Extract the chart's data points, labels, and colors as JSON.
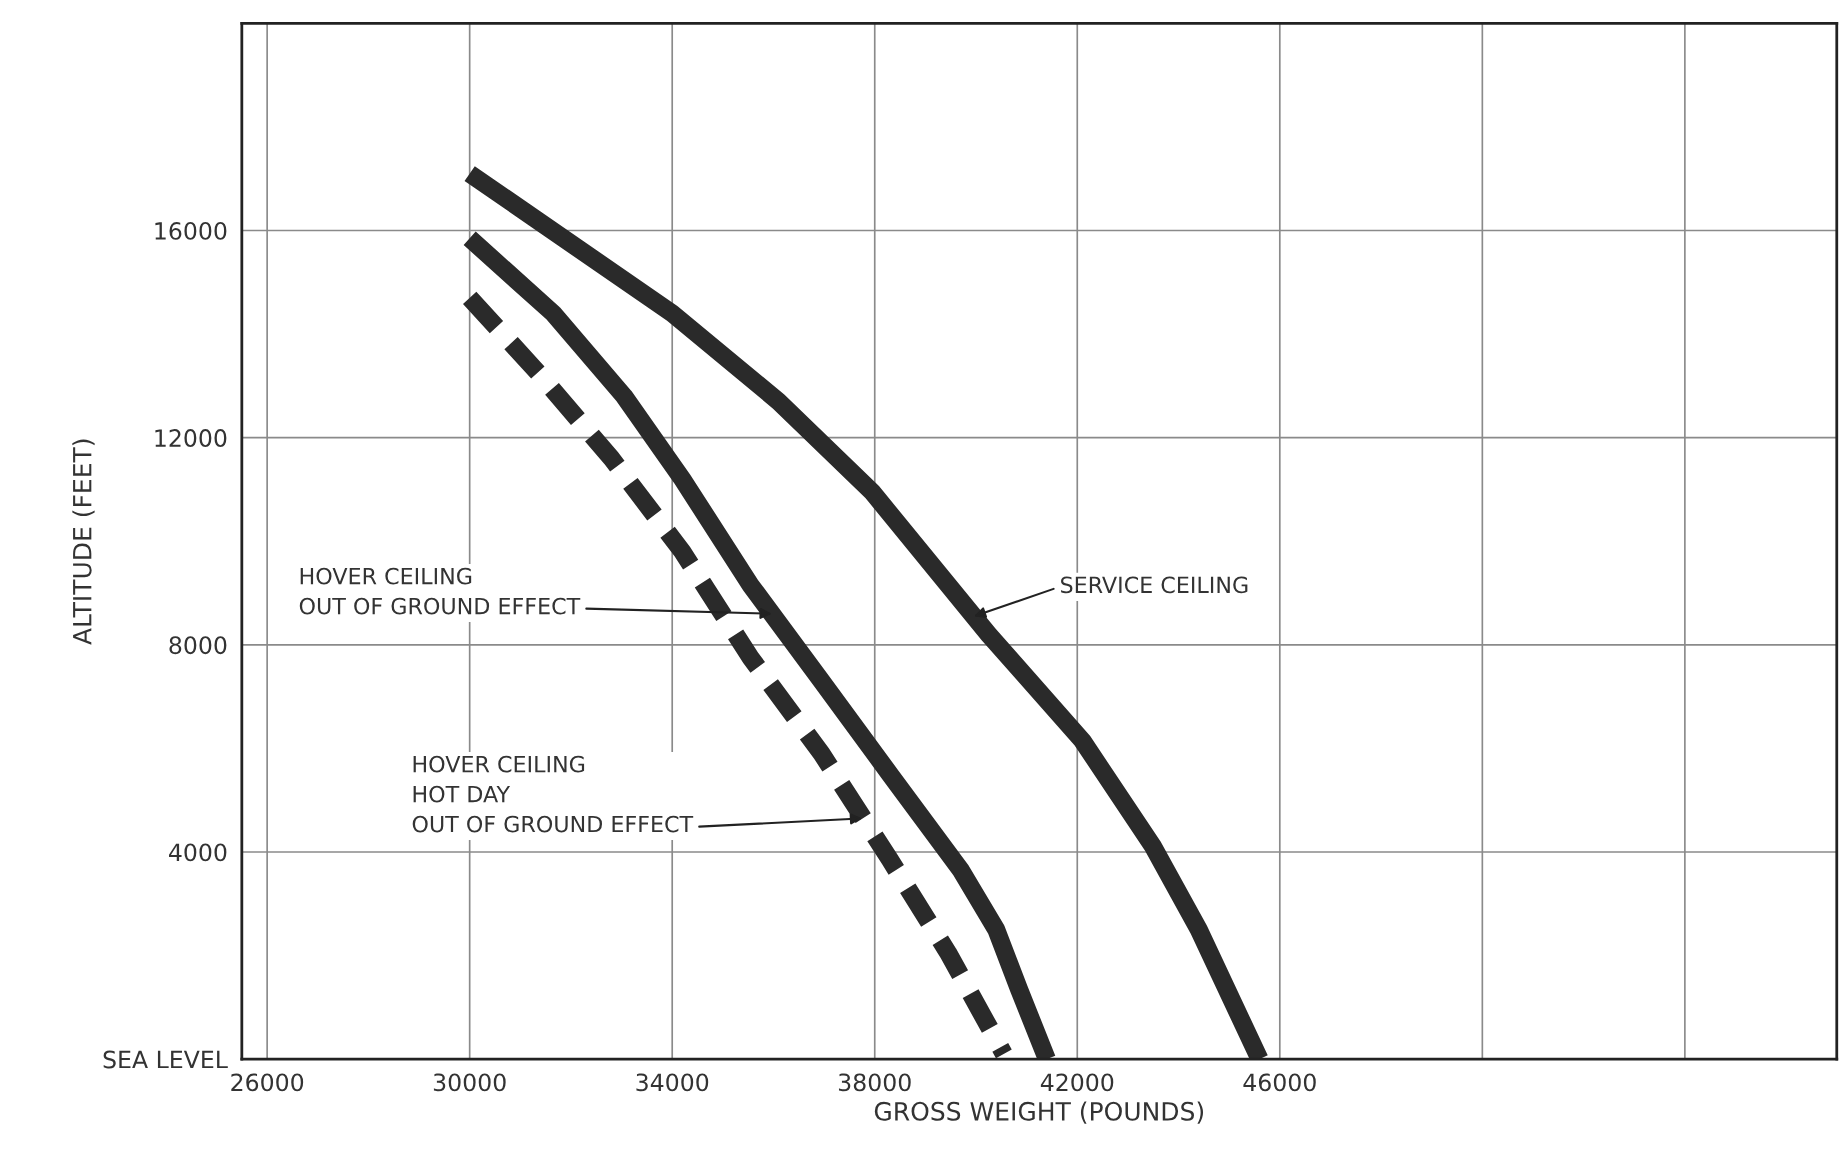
{
  "chart_data": {
    "type": "line",
    "xlabel": "GROSS WEIGHT (POUNDS)",
    "ylabel": "ALTITUDE (FEET)",
    "xlim": [
      25500,
      57000
    ],
    "ylim": [
      0,
      20000
    ],
    "xticks": [
      26000,
      30000,
      34000,
      38000,
      42000,
      46000,
      {
        "value": 50000,
        "label": null
      },
      {
        "value": 54000,
        "label": null
      }
    ],
    "yticks": [
      {
        "value": 0,
        "label": "SEA LEVEL"
      },
      {
        "value": 4000,
        "label": "4000"
      },
      {
        "value": 8000,
        "label": "8000"
      },
      {
        "value": 12000,
        "label": "12000"
      },
      {
        "value": 16000,
        "label": "16000"
      }
    ],
    "grid": true,
    "marker": "none",
    "series": [
      {
        "color": "#2a2a2a",
        "line_style": "solid",
        "x": [
          30000,
          34000,
          36100,
          37950,
          40250,
          42100,
          43500,
          44400,
          45600
        ],
        "values": [
          17100,
          14400,
          12700,
          10950,
          8200,
          6150,
          4100,
          2500,
          0
        ]
      },
      {
        "color": "#2a2a2a",
        "line_style": "solid",
        "x": [
          30000,
          31650,
          33050,
          34200,
          35550,
          36950,
          38300,
          39700,
          40400,
          40850,
          41400
        ],
        "values": [
          15850,
          14400,
          12800,
          11200,
          9150,
          7300,
          5500,
          3650,
          2500,
          1350,
          0
        ]
      },
      {
        "color": "#2a2a2a",
        "line_style": "dashed",
        "x": [
          30000,
          31400,
          32800,
          34200,
          35550,
          36950,
          38300,
          39450,
          40550
        ],
        "values": [
          14700,
          13200,
          11600,
          9800,
          7750,
          5900,
          3850,
          2050,
          100
        ]
      }
    ],
    "annotations": [
      {
        "text": "SERVICE CEILING",
        "x": 39960,
        "y": 8550
      },
      {
        "text": "HOVER CEILING\nOUT OF GROUND EFFECT",
        "x": 35966,
        "y": 8600
      },
      {
        "text": "HOVER CEILING\nHOT DAY\nOUT OF GROUND EFFECT",
        "x": 37750,
        "y": 4650
      }
    ]
  }
}
